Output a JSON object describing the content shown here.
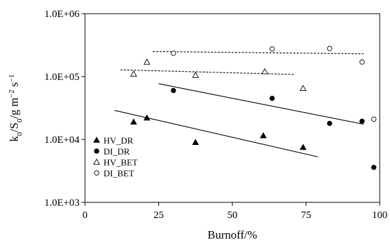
{
  "chart_data": {
    "type": "scatter",
    "xlabel": "Burnoff/%",
    "ylabel": {
      "parts": [
        {
          "t": "k",
          "s": "n"
        },
        {
          "t": "0",
          "s": "sub"
        },
        {
          "t": "/S",
          "s": "n"
        },
        {
          "t": "0",
          "s": "sub"
        },
        {
          "t": "/g m",
          "s": "n"
        },
        {
          "t": "−2",
          "s": "sup"
        },
        {
          "t": " s",
          "s": "n"
        },
        {
          "t": "−1",
          "s": "sup"
        }
      ]
    },
    "xlim": [
      0,
      100
    ],
    "ylim": [
      1000,
      1000000
    ],
    "yscale": "log",
    "x_ticks": [
      0,
      25,
      50,
      75,
      100
    ],
    "x_tick_labels": [
      "0",
      "25",
      "50",
      "75",
      "100"
    ],
    "y_ticks": [
      1000,
      10000,
      100000,
      1000000
    ],
    "y_tick_labels": [
      "1.0E+03",
      "1.0E+04",
      "1.0E+05",
      "1.0E+06"
    ],
    "grid": false,
    "legend_position": "bottom-left",
    "series": [
      {
        "name": "HV_DR",
        "marker": "filled-triangle",
        "points": [
          [
            16.5,
            19000
          ],
          [
            21,
            22000
          ],
          [
            37.5,
            9000
          ],
          [
            60.5,
            11500
          ],
          [
            74,
            7500
          ]
        ],
        "fit": {
          "style": "solid",
          "x": [
            10,
            79
          ],
          "y": [
            29000,
            5300
          ]
        }
      },
      {
        "name": "DI_DR",
        "marker": "filled-circle",
        "points": [
          [
            30,
            60000
          ],
          [
            63.5,
            45000
          ],
          [
            83,
            18000
          ],
          [
            94,
            19500
          ],
          [
            98,
            3600
          ]
        ],
        "fit": {
          "style": "solid",
          "x": [
            25,
            94.5
          ],
          "y": [
            77000,
            17500
          ]
        }
      },
      {
        "name": "HV_BET",
        "marker": "open-triangle",
        "points": [
          [
            16.5,
            110000
          ],
          [
            21,
            170000
          ],
          [
            37.5,
            105000
          ],
          [
            61,
            120000
          ],
          [
            74,
            65000
          ]
        ],
        "fit": {
          "style": "dashed",
          "x": [
            12,
            71
          ],
          "y": [
            128000,
            108000
          ]
        }
      },
      {
        "name": "DI_BET",
        "marker": "open-circle",
        "points": [
          [
            30,
            235000
          ],
          [
            63.5,
            275000
          ],
          [
            83,
            280000
          ],
          [
            94,
            170000
          ],
          [
            98,
            21000
          ]
        ],
        "fit": {
          "style": "dashed",
          "x": [
            23,
            94.5
          ],
          "y": [
            250000,
            230000
          ]
        }
      }
    ]
  }
}
